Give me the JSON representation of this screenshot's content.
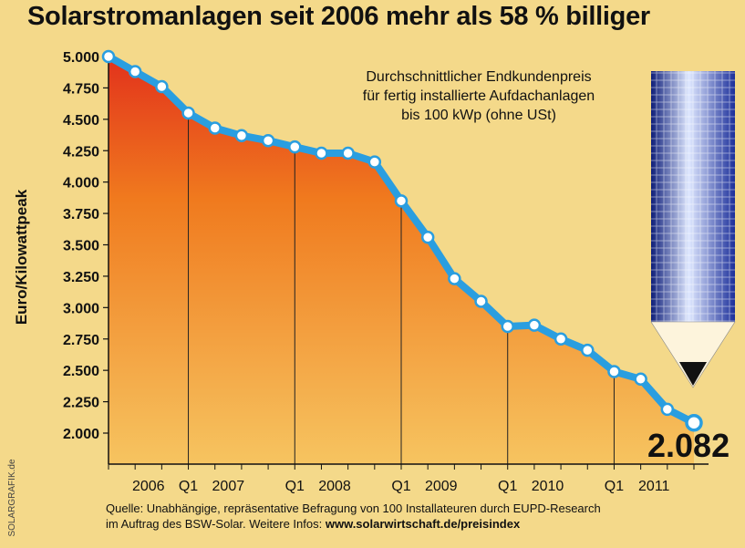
{
  "header": {
    "title": "Solarstromanlagen seit 2006 mehr als 58 % billiger"
  },
  "legend": {
    "lines": [
      "Durchschnittlicher Endkundenpreis",
      "für fertig installierte Aufdachanlagen",
      "bis 100 kWp (ohne USt)"
    ]
  },
  "footer": {
    "source_line1": "Quelle: Unabhängige, repräsentative Befragung von 100 Installateuren durch EUPD-Research",
    "source_line2_prefix": "im Auftrag des BSW-Solar. Weitere Infos: ",
    "source_line2_link": "www.solarwirtschaft.de/preisindex",
    "credit": "SOLARGRAFIK.de"
  },
  "colors": {
    "line": "#2a9ee0",
    "fill_top": "#e2321c",
    "fill_mid": "#f07a1e",
    "fill_bottom": "#f6c460",
    "background": "#f4d98a",
    "pencil": "#1c2f9a"
  },
  "pencil_icon": "solar-pencil-icon",
  "chart_data": {
    "type": "area",
    "title": "Solarstromanlagen seit 2006 mehr als 58 % billiger",
    "ylabel": "Euro/Kilowattpeak",
    "xlabel": "",
    "ylim": [
      1850,
      5000
    ],
    "yticks": [
      "5.000",
      "4.750",
      "4.500",
      "4.250",
      "4.000",
      "3.750",
      "3.500",
      "3.250",
      "3.000",
      "2.750",
      "2.500",
      "2.250",
      "2.000"
    ],
    "ytick_values": [
      5000,
      4750,
      4500,
      4250,
      4000,
      3750,
      3500,
      3250,
      3000,
      2750,
      2500,
      2250,
      2000
    ],
    "xtick_labels": [
      {
        "label": "2006",
        "x": 1.5
      },
      {
        "label": "Q1",
        "x": 3
      },
      {
        "label": "2007",
        "x": 4.5
      },
      {
        "label": "Q1",
        "x": 7
      },
      {
        "label": "2008",
        "x": 8.5
      },
      {
        "label": "Q1",
        "x": 11
      },
      {
        "label": "2009",
        "x": 12.5
      },
      {
        "label": "Q1",
        "x": 15
      },
      {
        "label": "2010",
        "x": 16.5
      },
      {
        "label": "Q1",
        "x": 19
      },
      {
        "label": "2011",
        "x": 20.5
      }
    ],
    "year_dividers": [
      3,
      7,
      11,
      15,
      19
    ],
    "x_range": [
      0,
      22
    ],
    "grid": false,
    "legend_position": "top-right",
    "series": [
      {
        "values": [
          5000,
          4880,
          4760,
          4550,
          4430,
          4370,
          4330,
          4280,
          4230,
          4230,
          4160,
          3850,
          3560,
          3230,
          3050,
          2850,
          2860,
          2750,
          2660,
          2490,
          2430,
          2190,
          2082
        ]
      }
    ],
    "highlight_label": "2.082"
  }
}
